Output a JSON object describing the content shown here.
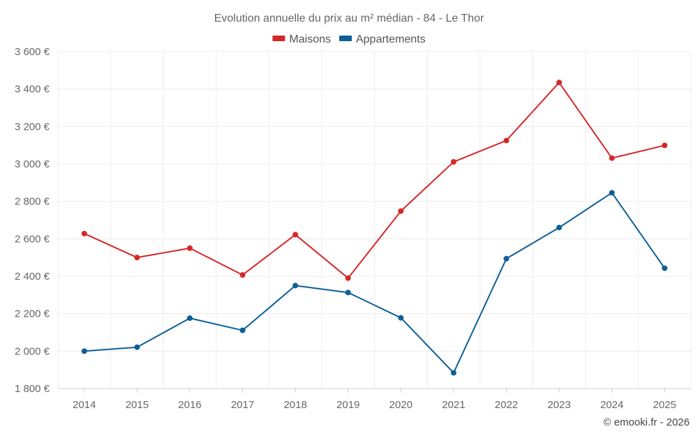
{
  "chart_data": {
    "type": "line",
    "title": "Evolution annuelle du prix au m² médian - 84 - Le Thor",
    "categories": [
      "2014",
      "2015",
      "2016",
      "2017",
      "2018",
      "2019",
      "2020",
      "2021",
      "2022",
      "2023",
      "2024",
      "2025"
    ],
    "series": [
      {
        "name": "Maisons",
        "color": "#d62728",
        "values": [
          2628,
          2500,
          2550,
          2407,
          2622,
          2390,
          2748,
          3011,
          3125,
          3435,
          3031,
          3099
        ]
      },
      {
        "name": "Appartements",
        "color": "#0d5f96",
        "values": [
          2000,
          2021,
          2176,
          2111,
          2350,
          2313,
          2178,
          1884,
          2494,
          2660,
          2846,
          2443
        ]
      }
    ],
    "ylim": [
      1800,
      3600
    ],
    "yticks": [
      1800,
      2000,
      2200,
      2400,
      2600,
      2800,
      3000,
      3200,
      3400,
      3600
    ],
    "ytick_labels": [
      "1 800 €",
      "2 000 €",
      "2 200 €",
      "2 400 €",
      "2 600 €",
      "2 800 €",
      "3 000 €",
      "3 200 €",
      "3 400 €",
      "3 600 €"
    ],
    "xlabel": "",
    "ylabel": "",
    "grid": true,
    "legend_position": "top-center"
  },
  "credits": "© emooki.fr - 2026"
}
